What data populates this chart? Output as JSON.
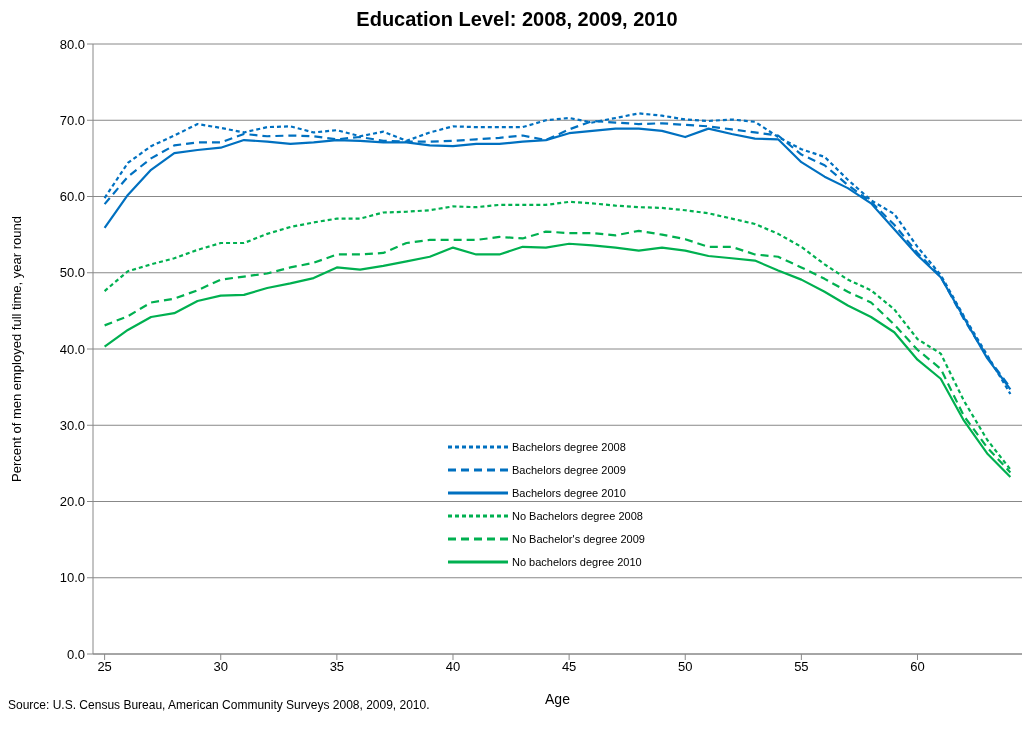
{
  "chart_data": {
    "type": "line",
    "title": "Education Level: 2008, 2009, 2010",
    "xlabel": "Age",
    "ylabel": "Percent of men employed full time, year round",
    "annotations": [
      "Source: U.S. Census Bureau, American Community Surveys 2008, 2009, 2010."
    ],
    "x": [
      25,
      26,
      27,
      28,
      29,
      30,
      31,
      32,
      33,
      34,
      35,
      36,
      37,
      38,
      39,
      40,
      41,
      42,
      43,
      44,
      45,
      46,
      47,
      48,
      49,
      50,
      51,
      52,
      53,
      54,
      55,
      56,
      57,
      58,
      59,
      60,
      61,
      62,
      63,
      64
    ],
    "xlim": [
      24.5,
      64.5
    ],
    "xticks": [
      25,
      30,
      35,
      40,
      45,
      50,
      55,
      60
    ],
    "ylim": [
      0,
      80
    ],
    "yticks": [
      {
        "value": 0,
        "label": "0.0"
      },
      {
        "value": 10,
        "label": "10.0"
      },
      {
        "value": 20,
        "label": "20.0"
      },
      {
        "value": 30,
        "label": "30.0"
      },
      {
        "value": 40,
        "label": "40.0"
      },
      {
        "value": 50,
        "label": "50.0"
      },
      {
        "value": 60,
        "label": "60.0"
      },
      {
        "value": 70,
        "label": "70.0"
      },
      {
        "value": 80,
        "label": "80.0"
      }
    ],
    "grid": "y",
    "legend": "center",
    "marker": "none",
    "series": [
      {
        "name": "Bachelors degree 2008",
        "color": "#0070c0",
        "line_style": "dotted",
        "values": [
          59.8,
          64.4,
          66.6,
          68.0,
          69.5,
          69.0,
          68.4,
          69.1,
          69.2,
          68.4,
          68.7,
          67.9,
          68.5,
          67.3,
          68.4,
          69.2,
          69.1,
          69.1,
          69.1,
          70.0,
          70.3,
          69.7,
          70.3,
          70.9,
          70.6,
          70.1,
          69.9,
          70.1,
          69.8,
          67.8,
          66.2,
          65.2,
          62.2,
          59.5,
          57.7,
          53.4,
          49.7,
          44.3,
          39.2,
          34.1
        ]
      },
      {
        "name": "Bachelors degree 2009",
        "color": "#0070c0",
        "line_style": "dashed",
        "values": [
          59.0,
          62.6,
          65.0,
          66.7,
          67.1,
          67.1,
          68.2,
          67.9,
          68.0,
          67.9,
          67.5,
          67.8,
          67.3,
          67.2,
          67.2,
          67.3,
          67.5,
          67.7,
          68.0,
          67.4,
          68.8,
          69.9,
          69.7,
          69.5,
          69.6,
          69.4,
          69.2,
          68.8,
          68.4,
          68.0,
          65.5,
          64.1,
          61.5,
          59.3,
          56.3,
          52.6,
          49.5,
          43.9,
          39.0,
          34.9
        ]
      },
      {
        "name": "Bachelors degree 2010",
        "color": "#0070c0",
        "line_style": "solid",
        "values": [
          55.9,
          60.2,
          63.5,
          65.7,
          66.1,
          66.4,
          67.4,
          67.2,
          66.9,
          67.1,
          67.4,
          67.3,
          67.1,
          67.1,
          66.7,
          66.6,
          66.9,
          66.9,
          67.2,
          67.4,
          68.3,
          68.6,
          68.9,
          68.9,
          68.6,
          67.8,
          68.9,
          68.2,
          67.6,
          67.5,
          64.5,
          62.6,
          61.1,
          59.1,
          55.7,
          52.3,
          49.4,
          44.1,
          38.8,
          34.7
        ]
      },
      {
        "name": "No Bachelors  degree 2008",
        "color": "#00b050",
        "line_style": "dotted",
        "values": [
          47.6,
          50.2,
          51.1,
          51.9,
          53.0,
          53.9,
          53.9,
          55.1,
          56.0,
          56.6,
          57.1,
          57.1,
          57.9,
          58.0,
          58.2,
          58.7,
          58.6,
          58.9,
          58.9,
          58.9,
          59.3,
          59.1,
          58.8,
          58.6,
          58.5,
          58.2,
          57.8,
          57.1,
          56.4,
          55.1,
          53.4,
          51.1,
          49.1,
          47.7,
          45.2,
          41.3,
          39.4,
          33.2,
          28.1,
          24.2
        ]
      },
      {
        "name": "No Bachelor's  degree 2009",
        "color": "#00b050",
        "line_style": "dashed",
        "values": [
          43.1,
          44.3,
          46.1,
          46.6,
          47.7,
          49.1,
          49.5,
          49.9,
          50.7,
          51.3,
          52.4,
          52.4,
          52.6,
          53.9,
          54.3,
          54.3,
          54.3,
          54.7,
          54.5,
          55.4,
          55.2,
          55.2,
          54.9,
          55.5,
          55.0,
          54.4,
          53.4,
          53.4,
          52.4,
          52.1,
          50.7,
          49.2,
          47.5,
          46.1,
          43.2,
          39.9,
          37.4,
          31.2,
          27.1,
          23.8
        ]
      },
      {
        "name": "No bachelors  degree 2010",
        "color": "#00b050",
        "line_style": "solid",
        "values": [
          40.3,
          42.5,
          44.2,
          44.7,
          46.3,
          47.0,
          47.1,
          48.0,
          48.6,
          49.3,
          50.7,
          50.4,
          50.9,
          51.5,
          52.1,
          53.3,
          52.4,
          52.4,
          53.4,
          53.3,
          53.8,
          53.6,
          53.3,
          52.9,
          53.3,
          52.9,
          52.2,
          51.9,
          51.6,
          50.3,
          49.1,
          47.5,
          45.7,
          44.2,
          42.2,
          38.6,
          36.1,
          30.6,
          26.3,
          23.2
        ]
      }
    ]
  }
}
